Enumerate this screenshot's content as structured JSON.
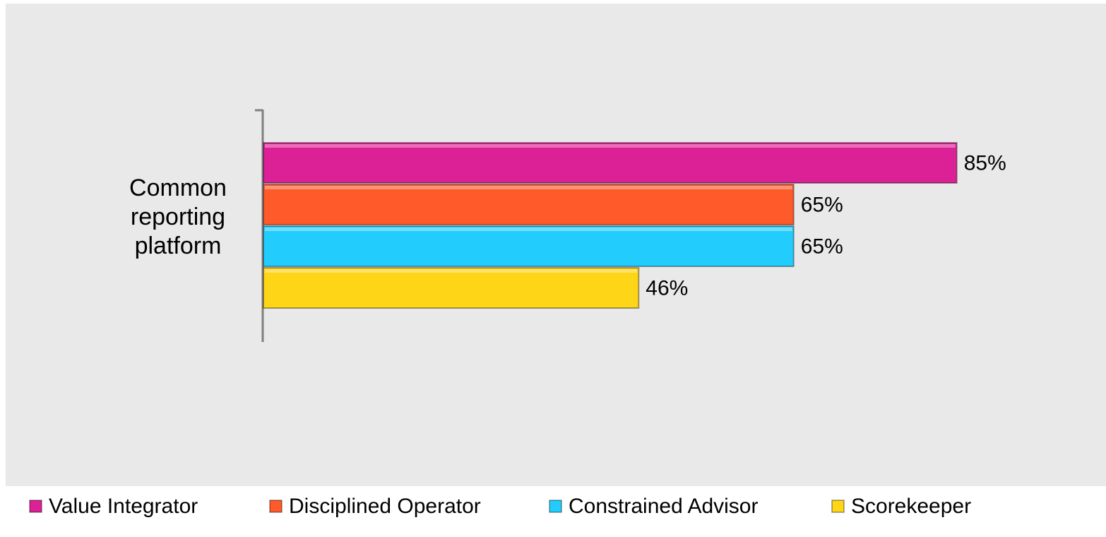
{
  "chart_data": {
    "type": "hbar",
    "categories": [
      "Common reporting platform"
    ],
    "series": [
      {
        "name": "Value Integrator",
        "color": "#dc2196",
        "values": [
          85
        ],
        "value_labels": [
          "85%"
        ]
      },
      {
        "name": "Disciplined Operator",
        "color": "#ff5a2a",
        "values": [
          65
        ],
        "value_labels": [
          "65%"
        ]
      },
      {
        "name": "Constrained Advisor",
        "color": "#22cdfd",
        "values": [
          65
        ],
        "value_labels": [
          "65%"
        ]
      },
      {
        "name": "Scorekeeper",
        "color": "#ffd518",
        "values": [
          46
        ],
        "value_labels": [
          "46%"
        ]
      }
    ],
    "xlim": [
      0,
      100
    ],
    "legend": "bottom"
  }
}
